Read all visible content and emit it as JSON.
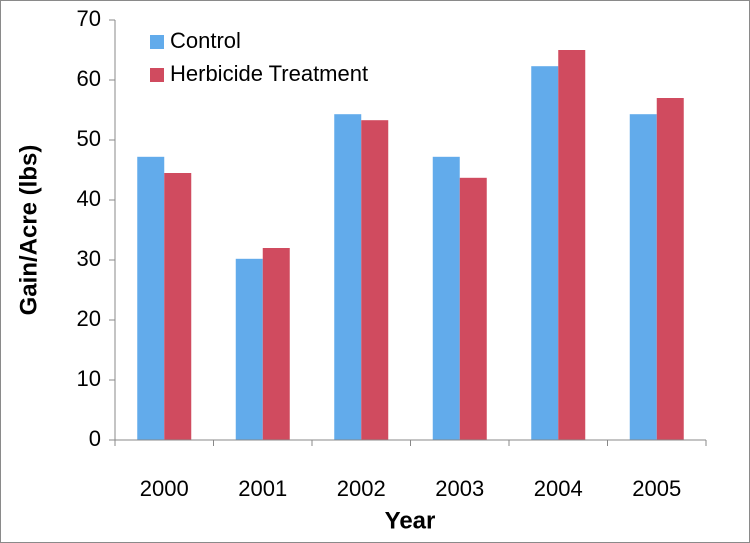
{
  "chart_data": {
    "type": "bar",
    "categories": [
      "2000",
      "2001",
      "2002",
      "2003",
      "2004",
      "2005"
    ],
    "series": [
      {
        "name": "Control",
        "color": "#62abeb",
        "values": [
          47.2,
          30.2,
          54.3,
          47.2,
          62.3,
          54.3
        ]
      },
      {
        "name": "Herbicide Treatment",
        "color": "#d04b5f",
        "values": [
          44.5,
          32,
          53.3,
          43.7,
          65,
          57
        ]
      }
    ],
    "x_label": "Year",
    "y_label": "Gain/Acre (lbs)",
    "ylim": [
      0,
      70
    ],
    "yticks": [
      0,
      10,
      20,
      30,
      40,
      50,
      60,
      70
    ],
    "legend": "top-left"
  }
}
